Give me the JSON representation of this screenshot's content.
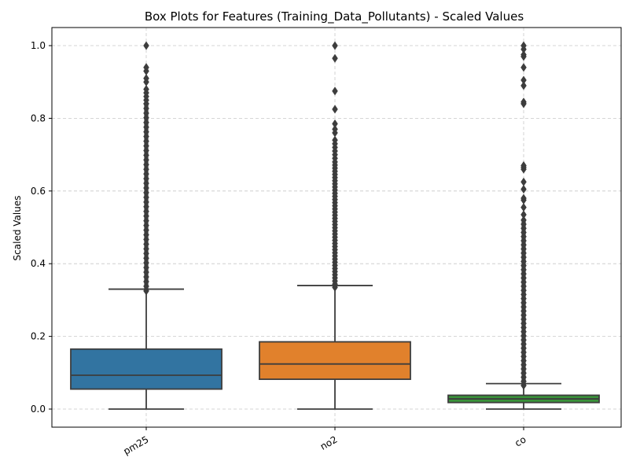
{
  "chart_data": {
    "type": "box",
    "title": "Box Plots for Features (Training_Data_Pollutants) - Scaled Values",
    "xlabel": "",
    "ylabel": "Scaled Values",
    "ylim": [
      -0.05,
      1.05
    ],
    "yticks": [
      0.0,
      0.2,
      0.4,
      0.6,
      0.8,
      1.0
    ],
    "ytick_labels": [
      "0.0",
      "0.2",
      "0.4",
      "0.6",
      "0.8",
      "1.0"
    ],
    "grid": true,
    "categories": [
      "pm25",
      "no2",
      "co"
    ],
    "series": [
      {
        "name": "pm25",
        "color": "#3274a1",
        "whisker_low": 0.0,
        "q1": 0.055,
        "median": 0.093,
        "q3": 0.165,
        "whisker_high": 0.33,
        "outlier_range": [
          0.325,
          0.84
        ],
        "outliers": [
          0.84,
          0.85,
          0.86,
          0.87,
          0.88,
          0.9,
          0.91,
          0.93,
          0.94,
          1.0
        ]
      },
      {
        "name": "no2",
        "color": "#e1812c",
        "whisker_low": 0.0,
        "q1": 0.082,
        "median": 0.124,
        "q3": 0.185,
        "whisker_high": 0.34,
        "outlier_range": [
          0.335,
          0.68
        ],
        "outliers": [
          0.69,
          0.7,
          0.71,
          0.72,
          0.73,
          0.74,
          0.76,
          0.77,
          0.785,
          0.825,
          0.875,
          0.965,
          1.0
        ]
      },
      {
        "name": "co",
        "color": "#3a923a",
        "whisker_low": 0.0,
        "q1": 0.018,
        "median": 0.028,
        "q3": 0.038,
        "whisker_high": 0.07,
        "outlier_range": [
          0.065,
          0.52
        ],
        "outliers": [
          0.535,
          0.555,
          0.575,
          0.58,
          0.605,
          0.625,
          0.66,
          0.665,
          0.67,
          0.84,
          0.845,
          0.89,
          0.905,
          0.94,
          0.97,
          0.975,
          0.99,
          1.0
        ]
      }
    ]
  }
}
